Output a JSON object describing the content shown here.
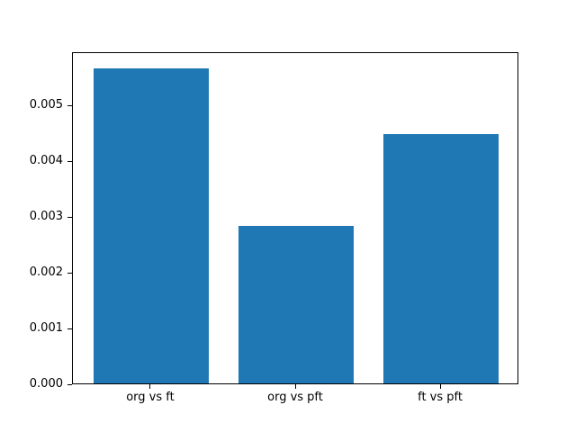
{
  "chart_data": {
    "type": "bar",
    "title": "",
    "xlabel": "",
    "ylabel": "",
    "categories": [
      "org vs ft",
      "org vs pft",
      "ft vs pft"
    ],
    "values": [
      0.00568,
      0.00285,
      0.0045
    ],
    "bar_color": "#1f77b4",
    "bar_width": 0.8,
    "xlim": [
      -0.54,
      2.54
    ],
    "ylim": [
      0,
      0.00596
    ],
    "yticks": [
      0,
      0.001,
      0.002,
      0.003,
      0.004,
      0.005
    ],
    "ytick_labels": [
      "0.000",
      "0.001",
      "0.002",
      "0.003",
      "0.004",
      "0.005"
    ],
    "grid": false,
    "legend": "none",
    "spine_color": "#000000",
    "background_color": "#ffffff"
  }
}
